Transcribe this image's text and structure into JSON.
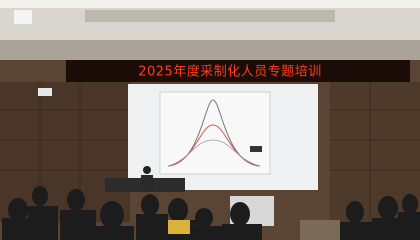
{
  "banner": {
    "text": "2025年度采制化人员专题培训"
  }
}
